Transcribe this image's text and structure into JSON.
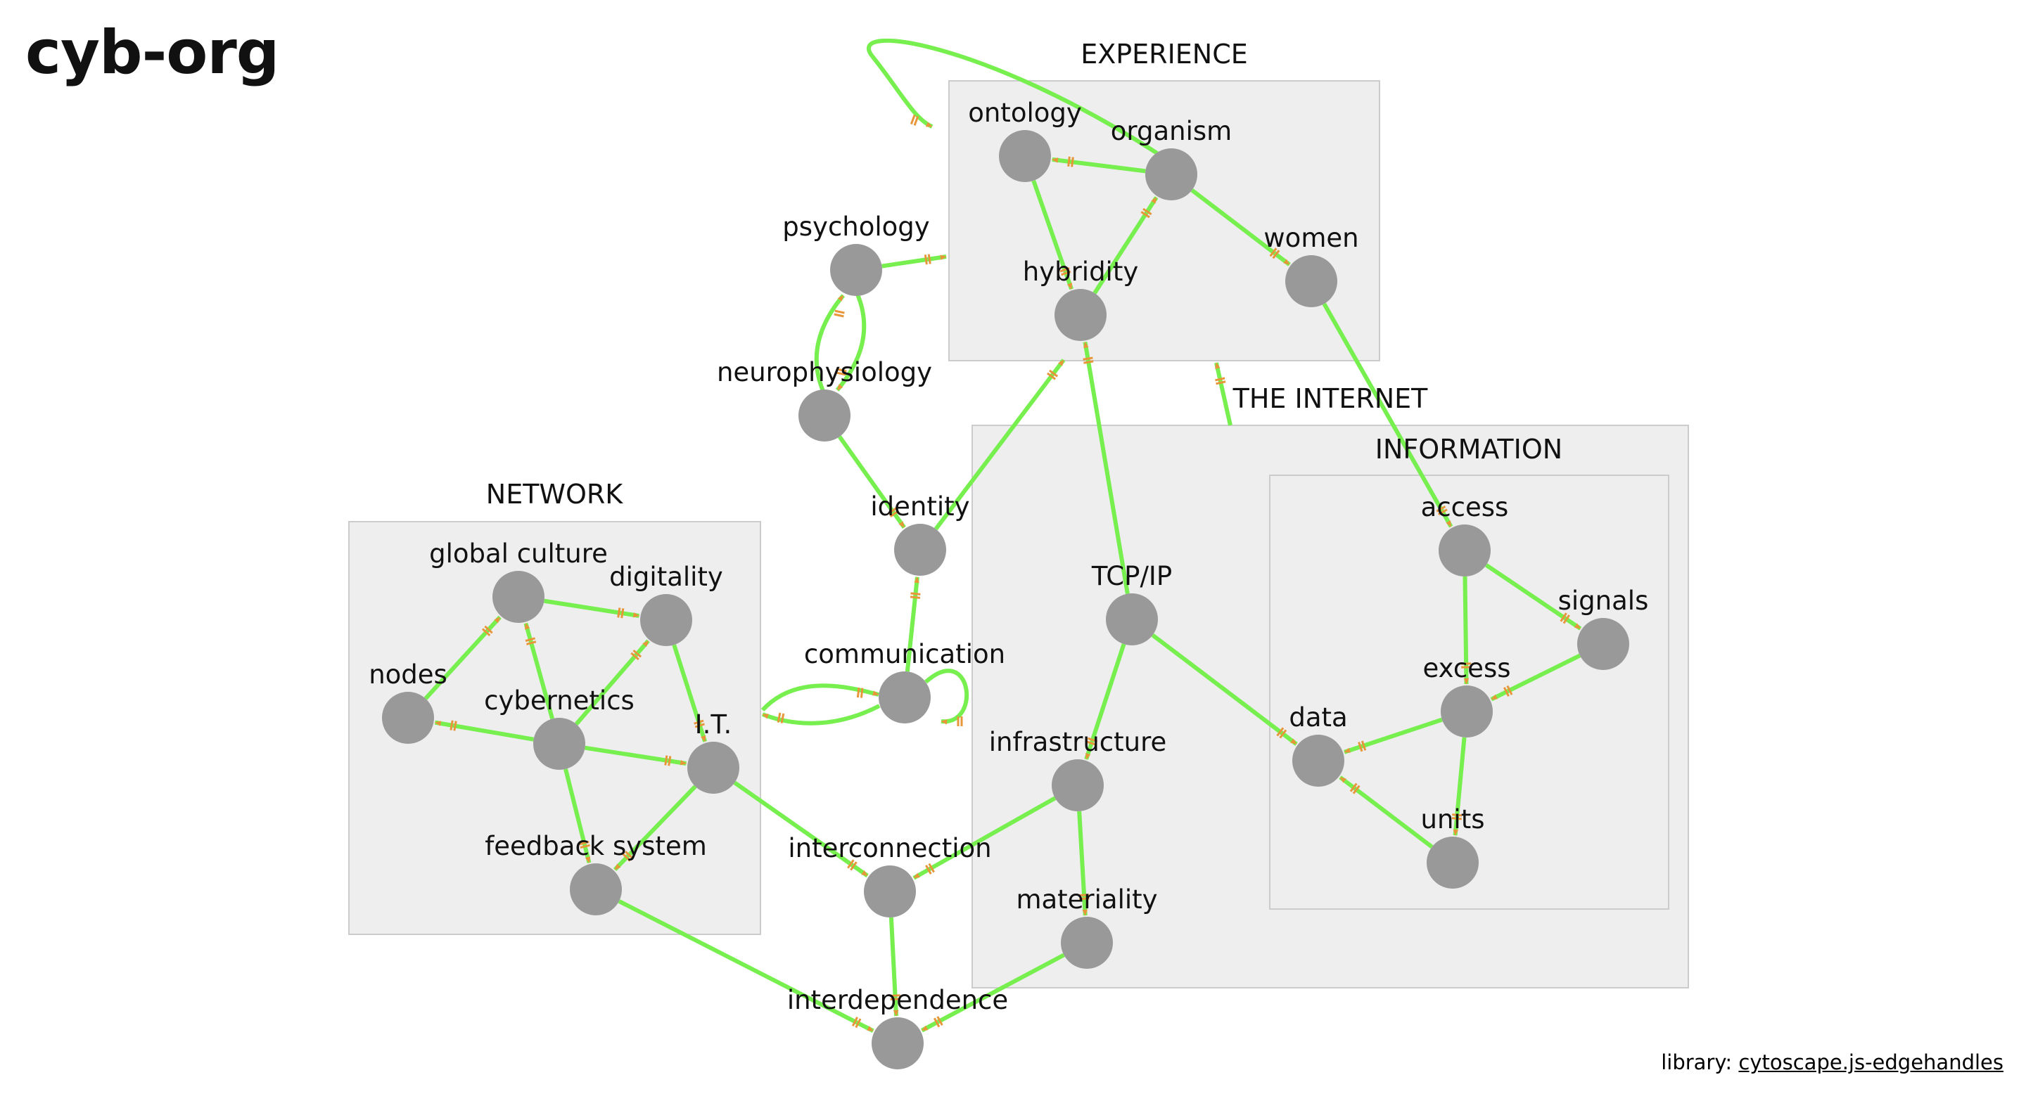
{
  "title": "cyb-org",
  "footer": {
    "prefix": "library: ",
    "link_text": "cytoscape.js-edgehandles"
  },
  "colors": {
    "edge": "#77ef4f",
    "arrow": "#e8963a",
    "node": "#999999",
    "group_fill": "#eeeeee",
    "group_border": "#cccccc"
  },
  "groups": [
    {
      "id": "experience",
      "label": "EXPERIENCE"
    },
    {
      "id": "the-internet",
      "label": "THE INTERNET"
    },
    {
      "id": "information",
      "label": "INFORMATION"
    },
    {
      "id": "network",
      "label": "NETWORK"
    }
  ],
  "nodes": [
    {
      "id": "ontology",
      "label": "ontology"
    },
    {
      "id": "organism",
      "label": "organism"
    },
    {
      "id": "hybridity",
      "label": "hybridity"
    },
    {
      "id": "women",
      "label": "women"
    },
    {
      "id": "psychology",
      "label": "psychology"
    },
    {
      "id": "neurophysiology",
      "label": "neurophysiology"
    },
    {
      "id": "identity",
      "label": "identity"
    },
    {
      "id": "communication",
      "label": "communication"
    },
    {
      "id": "global-culture",
      "label": "global culture"
    },
    {
      "id": "digitality",
      "label": "digitality"
    },
    {
      "id": "nodes",
      "label": "nodes"
    },
    {
      "id": "cybernetics",
      "label": "cybernetics"
    },
    {
      "id": "it",
      "label": "I.T."
    },
    {
      "id": "feedback-system",
      "label": "feedback system"
    },
    {
      "id": "interconnection",
      "label": "interconnection"
    },
    {
      "id": "interdependence",
      "label": "interdependence"
    },
    {
      "id": "tcp-ip",
      "label": "TCP/IP"
    },
    {
      "id": "infrastructure",
      "label": "infrastructure"
    },
    {
      "id": "materiality",
      "label": "materiality"
    },
    {
      "id": "access",
      "label": "access"
    },
    {
      "id": "signals",
      "label": "signals"
    },
    {
      "id": "excess",
      "label": "excess"
    },
    {
      "id": "data",
      "label": "data"
    },
    {
      "id": "units",
      "label": "units"
    }
  ],
  "edges": [
    {
      "source": "organism",
      "target": "ontology"
    },
    {
      "source": "organism",
      "target": "experience"
    },
    {
      "source": "ontology",
      "target": "hybridity"
    },
    {
      "source": "hybridity",
      "target": "organism"
    },
    {
      "source": "organism",
      "target": "women"
    },
    {
      "source": "women",
      "target": "access"
    },
    {
      "source": "psychology",
      "target": "experience"
    },
    {
      "source": "psychology",
      "target": "neurophysiology"
    },
    {
      "source": "neurophysiology",
      "target": "psychology"
    },
    {
      "source": "neurophysiology",
      "target": "identity"
    },
    {
      "source": "identity",
      "target": "experience"
    },
    {
      "source": "communication",
      "target": "identity"
    },
    {
      "source": "communication",
      "target": "communication"
    },
    {
      "source": "communication",
      "target": "network"
    },
    {
      "source": "network",
      "target": "communication"
    },
    {
      "source": "tcp-ip",
      "target": "hybridity"
    },
    {
      "source": "the-internet",
      "target": "experience"
    },
    {
      "source": "tcp-ip",
      "target": "infrastructure"
    },
    {
      "source": "tcp-ip",
      "target": "data"
    },
    {
      "source": "infrastructure",
      "target": "interconnection"
    },
    {
      "source": "infrastructure",
      "target": "materiality"
    },
    {
      "source": "materiality",
      "target": "interdependence"
    },
    {
      "source": "interconnection",
      "target": "interdependence"
    },
    {
      "source": "feedback-system",
      "target": "interdependence"
    },
    {
      "source": "it",
      "target": "interconnection"
    },
    {
      "source": "it",
      "target": "feedback-system"
    },
    {
      "source": "cybernetics",
      "target": "feedback-system"
    },
    {
      "source": "cybernetics",
      "target": "it"
    },
    {
      "source": "cybernetics",
      "target": "nodes"
    },
    {
      "source": "cybernetics",
      "target": "global-culture"
    },
    {
      "source": "cybernetics",
      "target": "digitality"
    },
    {
      "source": "nodes",
      "target": "global-culture"
    },
    {
      "source": "global-culture",
      "target": "digitality"
    },
    {
      "source": "digitality",
      "target": "it"
    },
    {
      "source": "access",
      "target": "signals"
    },
    {
      "source": "access",
      "target": "excess"
    },
    {
      "source": "signals",
      "target": "excess"
    },
    {
      "source": "excess",
      "target": "data"
    },
    {
      "source": "excess",
      "target": "units"
    },
    {
      "source": "units",
      "target": "data"
    }
  ]
}
